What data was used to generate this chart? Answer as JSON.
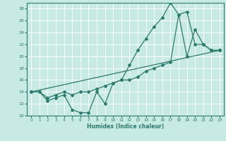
{
  "bg_color": "#c8eae4",
  "grid_color": "#ffffff",
  "line_color": "#2d7a6e",
  "xlabel": "Humidex (Indice chaleur)",
  "ylim": [
    10,
    29
  ],
  "xlim": [
    -0.5,
    23.5
  ],
  "yticks": [
    10,
    12,
    14,
    16,
    18,
    20,
    22,
    24,
    26,
    28
  ],
  "xticks": [
    0,
    1,
    2,
    3,
    4,
    5,
    6,
    7,
    8,
    9,
    10,
    11,
    12,
    13,
    14,
    15,
    16,
    17,
    18,
    19,
    20,
    21,
    22,
    23
  ],
  "line1_x": [
    0,
    1,
    2,
    3,
    4,
    5,
    6,
    7,
    8,
    9,
    10,
    11,
    12,
    13,
    14,
    15,
    16,
    17,
    18,
    19,
    20,
    21,
    22,
    23
  ],
  "line1_y": [
    14,
    14,
    12.5,
    13,
    13.5,
    11,
    10.5,
    10.5,
    14,
    12,
    15.5,
    16,
    18.5,
    21,
    23,
    25,
    26.5,
    29,
    27,
    27.5,
    22,
    22,
    21,
    21
  ],
  "line2_x": [
    0,
    1,
    2,
    3,
    4,
    5,
    6,
    7,
    8,
    9,
    10,
    11,
    12,
    13,
    14,
    15,
    16,
    17,
    18,
    19,
    20,
    21,
    22,
    23
  ],
  "line2_y": [
    14,
    14,
    13,
    13.5,
    14,
    13.5,
    14,
    14,
    14.5,
    15,
    15.5,
    16,
    16,
    16.5,
    17.5,
    18,
    18.5,
    19,
    27,
    20,
    24.5,
    22,
    21,
    21
  ],
  "line3_x": [
    0,
    23
  ],
  "line3_y": [
    14,
    21
  ]
}
